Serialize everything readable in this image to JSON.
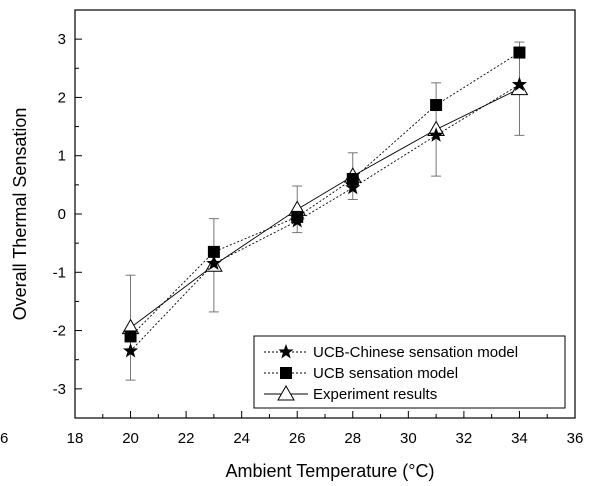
{
  "chart_data": {
    "type": "line",
    "xlabel": "Ambient Temperature (°C)",
    "ylabel": "Overall Thermal Sensation",
    "xlim": [
      18,
      36
    ],
    "ylim": [
      -3.5,
      3.5
    ],
    "x_ticks": [
      18,
      20,
      22,
      24,
      26,
      28,
      30,
      32,
      34,
      36
    ],
    "y_ticks": [
      -3,
      -2,
      -1,
      0,
      1,
      2,
      3
    ],
    "x_tick_labels": [
      "18",
      "20",
      "22",
      "24",
      "26",
      "28",
      "30",
      "32",
      "34",
      "36"
    ],
    "y_tick_labels": [
      "-3",
      "-2",
      "-1",
      "0",
      "1",
      "2",
      "3"
    ],
    "stray_label": "6",
    "legend_position": "bottom-right",
    "series": [
      {
        "name": "UCB-Chinese sensation model",
        "marker": "star",
        "line": "dotted",
        "x": [
          20,
          23,
          26,
          28,
          31,
          34
        ],
        "y": [
          -2.35,
          -0.85,
          -0.12,
          0.45,
          1.35,
          2.22
        ]
      },
      {
        "name": "UCB sensation model",
        "marker": "square",
        "line": "dotted",
        "x": [
          20,
          23,
          26,
          28,
          31,
          34
        ],
        "y": [
          -2.1,
          -0.65,
          -0.05,
          0.6,
          1.87,
          2.77
        ]
      },
      {
        "name": "Experiment results",
        "marker": "triangle-open",
        "line": "solid",
        "x": [
          20,
          23,
          26,
          28,
          31,
          34
        ],
        "y": [
          -1.95,
          -0.88,
          0.08,
          0.65,
          1.45,
          2.15
        ],
        "error": [
          0.9,
          0.8,
          0.4,
          0.4,
          0.8,
          0.8
        ]
      }
    ]
  }
}
